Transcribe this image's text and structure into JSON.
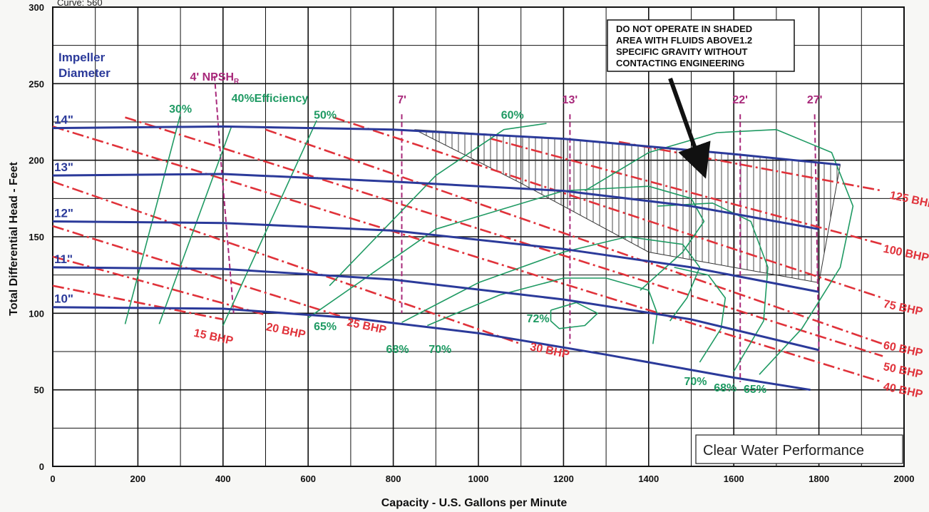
{
  "chart_data": {
    "type": "line",
    "curve_label": "Curve: 560",
    "xlabel": "Capacity - U.S. Gallons per Minute",
    "ylabel": "Total Differential Head - Feet",
    "xlim": [
      0,
      2000
    ],
    "ylim": [
      0,
      300
    ],
    "x_ticks": [
      0,
      200,
      400,
      600,
      800,
      1000,
      1200,
      1400,
      1600,
      1800,
      2000
    ],
    "y_ticks": [
      0,
      50,
      100,
      150,
      200,
      250,
      300
    ],
    "grid": true,
    "impeller_title": "Impeller",
    "impeller_title2": "Diameter",
    "impeller_curves": [
      {
        "name": "14\"",
        "points": [
          [
            0,
            221
          ],
          [
            400,
            222
          ],
          [
            800,
            220
          ],
          [
            1200,
            214
          ],
          [
            1600,
            204
          ],
          [
            1850,
            197
          ]
        ]
      },
      {
        "name": "13\"",
        "points": [
          [
            0,
            190
          ],
          [
            400,
            191
          ],
          [
            800,
            186
          ],
          [
            1200,
            180
          ],
          [
            1500,
            170
          ],
          [
            1800,
            155
          ]
        ]
      },
      {
        "name": "12\"",
        "points": [
          [
            0,
            160
          ],
          [
            400,
            159
          ],
          [
            800,
            154
          ],
          [
            1200,
            142
          ],
          [
            1500,
            130
          ],
          [
            1800,
            114
          ]
        ]
      },
      {
        "name": "11\"",
        "points": [
          [
            0,
            130
          ],
          [
            400,
            129
          ],
          [
            800,
            122
          ],
          [
            1200,
            109
          ],
          [
            1500,
            96
          ],
          [
            1800,
            76
          ]
        ]
      },
      {
        "name": "10\"",
        "points": [
          [
            0,
            104
          ],
          [
            400,
            103
          ],
          [
            700,
            97
          ],
          [
            1000,
            87
          ],
          [
            1300,
            73
          ],
          [
            1600,
            58
          ],
          [
            1780,
            50
          ]
        ]
      }
    ],
    "bhp_lines": [
      {
        "name": "15 BHP",
        "points": [
          [
            0,
            118
          ],
          [
            400,
            96
          ]
        ]
      },
      {
        "name": "20 BHP",
        "points": [
          [
            0,
            137
          ],
          [
            500,
            99
          ]
        ]
      },
      {
        "name": "25 BHP",
        "points": [
          [
            0,
            157
          ],
          [
            700,
            96
          ]
        ]
      },
      {
        "name": "30 BHP",
        "points": [
          [
            0,
            186
          ],
          [
            1100,
            80
          ]
        ]
      },
      {
        "name": "40 BHP",
        "points": [
          [
            0,
            222
          ],
          [
            1950,
            55
          ]
        ]
      },
      {
        "name": "50 BHP",
        "points": [
          [
            170,
            228
          ],
          [
            1950,
            72
          ]
        ]
      },
      {
        "name": "60 BHP",
        "points": [
          [
            500,
            220
          ],
          [
            1950,
            80
          ]
        ]
      },
      {
        "name": "75 BHP",
        "points": [
          [
            660,
            228
          ],
          [
            1950,
            110
          ]
        ]
      },
      {
        "name": "100 BHP",
        "points": [
          [
            1030,
            214
          ],
          [
            1950,
            145
          ]
        ]
      },
      {
        "name": "125 BHP",
        "points": [
          [
            1330,
            212
          ],
          [
            1950,
            180
          ]
        ]
      }
    ],
    "bhp_labels": [
      {
        "name": "15 BHP",
        "at": [
          330,
          85
        ]
      },
      {
        "name": "20 BHP",
        "at": [
          500,
          89
        ]
      },
      {
        "name": "25 BHP",
        "at": [
          690,
          92
        ]
      },
      {
        "name": "30 BHP",
        "at": [
          1120,
          76
        ]
      },
      {
        "name": "40 BHP",
        "at": [
          1950,
          50
        ]
      },
      {
        "name": "50 BHP",
        "at": [
          1950,
          63
        ]
      },
      {
        "name": "60 BHP",
        "at": [
          1950,
          77
        ]
      },
      {
        "name": "75 BHP",
        "at": [
          1950,
          104
        ]
      },
      {
        "name": "100 BHP",
        "at": [
          1950,
          140
        ]
      },
      {
        "name": "125 BHP",
        "at": [
          1965,
          175
        ]
      }
    ],
    "efficiency_lines": [
      {
        "name": "30%",
        "points": [
          [
            170,
            93
          ],
          [
            300,
            230
          ]
        ]
      },
      {
        "name": "40%Efficiency",
        "points": [
          [
            250,
            93
          ],
          [
            420,
            222
          ]
        ]
      },
      {
        "name": "50%",
        "points": [
          [
            400,
            92
          ],
          [
            620,
            226
          ]
        ]
      },
      {
        "name": "60%",
        "points": [
          [
            650,
            118
          ],
          [
            900,
            190
          ],
          [
            1060,
            220
          ],
          [
            1160,
            224
          ]
        ]
      },
      {
        "name": "65% (left)",
        "points": [
          [
            600,
            97
          ],
          [
            900,
            155
          ],
          [
            1200,
            180
          ],
          [
            1400,
            183
          ],
          [
            1500,
            175
          ],
          [
            1530,
            160
          ],
          [
            1480,
            140
          ],
          [
            1380,
            115
          ]
        ]
      },
      {
        "name": "68% (left)",
        "points": [
          [
            820,
            94
          ],
          [
            1000,
            120
          ],
          [
            1200,
            140
          ],
          [
            1350,
            150
          ],
          [
            1480,
            145
          ],
          [
            1520,
            130
          ],
          [
            1490,
            110
          ],
          [
            1450,
            95
          ]
        ]
      },
      {
        "name": "70% (left)",
        "points": [
          [
            880,
            92
          ],
          [
            1050,
            112
          ],
          [
            1200,
            123
          ],
          [
            1300,
            123
          ],
          [
            1400,
            115
          ],
          [
            1420,
            100
          ],
          [
            1410,
            80
          ]
        ]
      },
      {
        "name": "72%",
        "points": [
          [
            1170,
            102
          ],
          [
            1230,
            107
          ],
          [
            1280,
            100
          ],
          [
            1250,
            92
          ],
          [
            1190,
            90
          ],
          [
            1170,
            95
          ],
          [
            1170,
            102
          ]
        ]
      },
      {
        "name": "65% (right)",
        "points": [
          [
            1660,
            60
          ],
          [
            1760,
            90
          ],
          [
            1850,
            130
          ],
          [
            1880,
            170
          ],
          [
            1830,
            205
          ],
          [
            1700,
            220
          ],
          [
            1560,
            218
          ],
          [
            1400,
            205
          ],
          [
            1250,
            180
          ]
        ]
      },
      {
        "name": "68% (right)",
        "points": [
          [
            1600,
            62
          ],
          [
            1670,
            95
          ],
          [
            1680,
            130
          ],
          [
            1640,
            160
          ],
          [
            1550,
            172
          ],
          [
            1420,
            170
          ]
        ]
      },
      {
        "name": "70% (right)",
        "points": [
          [
            1520,
            68
          ],
          [
            1570,
            90
          ],
          [
            1580,
            110
          ],
          [
            1540,
            125
          ],
          [
            1460,
            130
          ]
        ]
      }
    ],
    "efficiency_labels": [
      {
        "name": "30%",
        "at": [
          300,
          231
        ]
      },
      {
        "name": "40%Efficiency",
        "at": [
          510,
          238
        ]
      },
      {
        "name": "50%",
        "at": [
          640,
          227
        ]
      },
      {
        "name": "60%",
        "at": [
          1080,
          227
        ]
      },
      {
        "name": "65%",
        "at": [
          640,
          89
        ]
      },
      {
        "name": "68%",
        "at": [
          810,
          74
        ]
      },
      {
        "name": "70%",
        "at": [
          910,
          74
        ]
      },
      {
        "name": "72%",
        "at": [
          1140,
          94
        ]
      },
      {
        "name": "70%",
        "at": [
          1510,
          53
        ]
      },
      {
        "name": "68%",
        "at": [
          1580,
          49
        ]
      },
      {
        "name": "65%",
        "at": [
          1650,
          48
        ]
      }
    ],
    "npsh_lines": [
      {
        "name": "4' NPSH",
        "points": [
          [
            380,
            255
          ],
          [
            395,
            200
          ],
          [
            425,
            100
          ]
        ]
      },
      {
        "name": "7'",
        "points": [
          [
            820,
            230
          ],
          [
            820,
            100
          ]
        ]
      },
      {
        "name": "13'",
        "points": [
          [
            1215,
            230
          ],
          [
            1215,
            80
          ]
        ]
      },
      {
        "name": "22'",
        "points": [
          [
            1615,
            230
          ],
          [
            1615,
            55
          ]
        ]
      },
      {
        "name": "27'",
        "points": [
          [
            1790,
            230
          ],
          [
            1800,
            75
          ]
        ]
      }
    ],
    "npsh_labels": [
      {
        "name": "4' NPSH",
        "sub": "R",
        "at": [
          380,
          252
        ]
      },
      {
        "name": "7'",
        "at": [
          820,
          237
        ]
      },
      {
        "name": "13'",
        "at": [
          1215,
          237
        ]
      },
      {
        "name": "22'",
        "at": [
          1615,
          237
        ]
      },
      {
        "name": "27'",
        "at": [
          1790,
          237
        ]
      }
    ],
    "shaded_region": [
      [
        850,
        220
      ],
      [
        1200,
        214
      ],
      [
        1600,
        204
      ],
      [
        1850,
        197
      ],
      [
        1800,
        120
      ],
      [
        1400,
        140
      ],
      [
        1100,
        185
      ],
      [
        850,
        220
      ]
    ],
    "warning": [
      "DO NOT OPERATE IN SHADED",
      "AREA WITH FLUIDS ABOVE1.2",
      "SPECIFIC GRAVITY WITHOUT",
      "CONTACTING ENGINEERING"
    ],
    "performance_note": "Clear Water Performance",
    "colors": {
      "impeller": "#2b3a9a",
      "bhp": "#e0323a",
      "efficiency": "#1f9a63",
      "npsh": "#a8287a",
      "grid": "#111111"
    }
  }
}
